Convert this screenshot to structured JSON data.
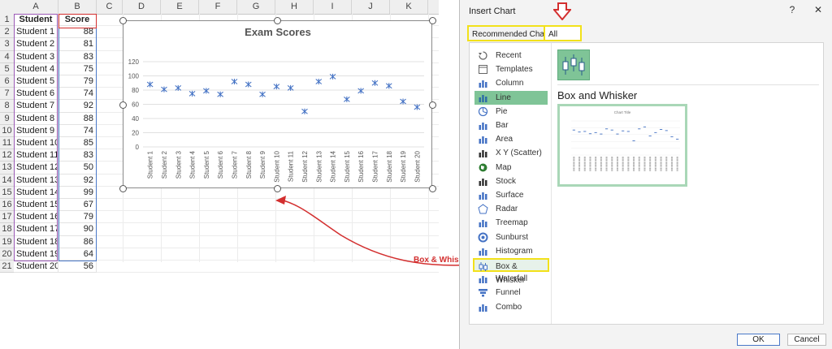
{
  "sheet": {
    "col_headers": [
      "A",
      "B",
      "C",
      "D",
      "E",
      "F",
      "G",
      "H",
      "I",
      "J",
      "K"
    ],
    "header_student": "Student",
    "header_score": "Score",
    "rows": [
      {
        "student": "Student 1",
        "score": "88"
      },
      {
        "student": "Student 2",
        "score": "81"
      },
      {
        "student": "Student 3",
        "score": "83"
      },
      {
        "student": "Student 4",
        "score": "75"
      },
      {
        "student": "Student 5",
        "score": "79"
      },
      {
        "student": "Student 6",
        "score": "74"
      },
      {
        "student": "Student 7",
        "score": "92"
      },
      {
        "student": "Student 8",
        "score": "88"
      },
      {
        "student": "Student 9",
        "score": "74"
      },
      {
        "student": "Student 10",
        "score": "85"
      },
      {
        "student": "Student 11",
        "score": "83"
      },
      {
        "student": "Student 12",
        "score": "50"
      },
      {
        "student": "Student 13",
        "score": "92"
      },
      {
        "student": "Student 14",
        "score": "99"
      },
      {
        "student": "Student 15",
        "score": "67"
      },
      {
        "student": "Student 16",
        "score": "79"
      },
      {
        "student": "Student 17",
        "score": "90"
      },
      {
        "student": "Student 18",
        "score": "86"
      },
      {
        "student": "Student 19",
        "score": "64"
      },
      {
        "student": "Student 20",
        "score": "56"
      }
    ]
  },
  "chart_data": {
    "type": "scatter",
    "title": "Exam Scores",
    "categories": [
      "Student 1",
      "Student 2",
      "Student 3",
      "Student 4",
      "Student 5",
      "Student 6",
      "Student 7",
      "Student 8",
      "Student 9",
      "Student 10",
      "Student 11",
      "Student 12",
      "Student 13",
      "Student 14",
      "Student 15",
      "Student 16",
      "Student 17",
      "Student 18",
      "Student 19",
      "Student 20"
    ],
    "values": [
      88,
      81,
      83,
      75,
      79,
      74,
      92,
      88,
      74,
      85,
      83,
      50,
      92,
      99,
      67,
      79,
      90,
      86,
      64,
      56
    ],
    "yticks": [
      "0",
      "20",
      "40",
      "60",
      "80",
      "100",
      "120"
    ],
    "ylim": [
      0,
      120
    ],
    "marker_color": "#4472c4",
    "grid": true
  },
  "annotation": {
    "label": "Box & Whisker",
    "color": "#d32f2f"
  },
  "dialog": {
    "title": "Insert Chart",
    "help": "?",
    "close": "✕",
    "tabs": [
      "Recommended Charts",
      "All Charts"
    ],
    "chart_types": [
      "Recent",
      "Templates",
      "Column",
      "Line",
      "Pie",
      "Bar",
      "Area",
      "X Y (Scatter)",
      "Map",
      "Stock",
      "Surface",
      "Radar",
      "Treemap",
      "Sunburst",
      "Histogram",
      "Box & Whisker",
      "Waterfall",
      "Funnel",
      "Combo"
    ],
    "selected_type": "Box and Whisker",
    "preview_title": "Chart Title",
    "ok": "OK",
    "cancel": "Cancel",
    "accent": "#7fc497",
    "highlight": "#f2e11a"
  }
}
